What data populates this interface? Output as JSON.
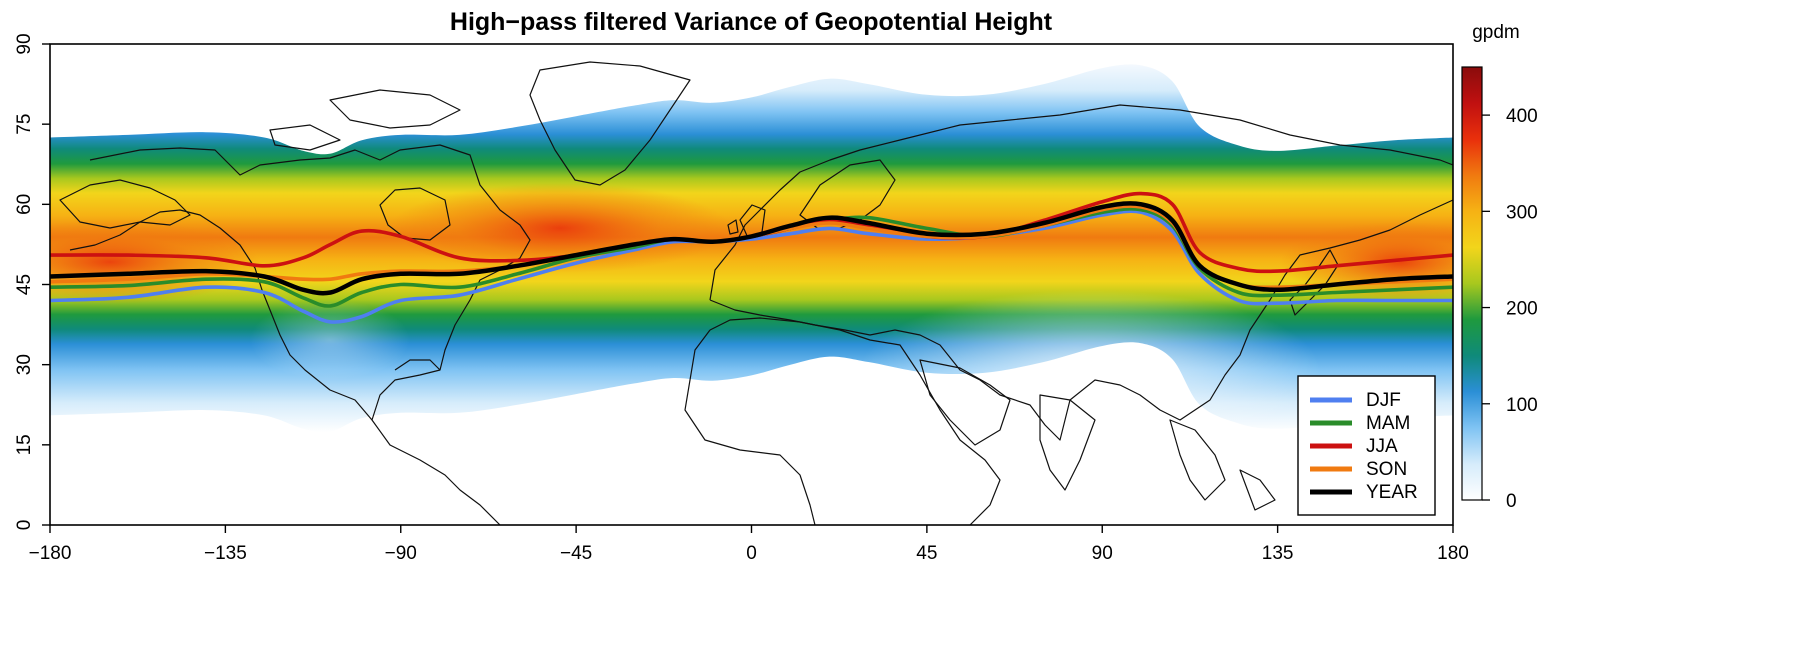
{
  "title": "High−pass filtered Variance of Geopotential Height",
  "colorbar": {
    "unit": "gpdm",
    "ticks": [
      "0",
      "100",
      "200",
      "300",
      "400"
    ],
    "tick_values": [
      0,
      100,
      200,
      300,
      400
    ],
    "range": [
      0,
      450
    ],
    "stops": [
      "#ffffff",
      "#d6ecfb",
      "#7fc3f3",
      "#2b8fd6",
      "#0f8a7a",
      "#1f9a3e",
      "#a8c81e",
      "#f2d51b",
      "#f6b214",
      "#f07a10",
      "#e9300c",
      "#c01010",
      "#8a0c0c"
    ]
  },
  "x_axis": {
    "ticks": [
      "−180",
      "−135",
      "−90",
      "−45",
      "0",
      "45",
      "90",
      "135",
      "180"
    ],
    "tick_values": [
      -180,
      -135,
      -90,
      -45,
      0,
      45,
      90,
      135,
      180
    ],
    "range": [
      -180,
      180
    ]
  },
  "y_axis": {
    "ticks": [
      "0",
      "15",
      "30",
      "45",
      "60",
      "75",
      "90"
    ],
    "tick_values": [
      0,
      15,
      30,
      45,
      60,
      75,
      90
    ],
    "range": [
      0,
      90
    ]
  },
  "legend": {
    "placement": "bottom-right",
    "items": [
      {
        "label": "DJF",
        "color": "#4f7ff0"
      },
      {
        "label": "MAM",
        "color": "#2a8c2a"
      },
      {
        "label": "JJA",
        "color": "#cc1111"
      },
      {
        "label": "SON",
        "color": "#f07a10"
      },
      {
        "label": "YEAR",
        "color": "#000000"
      }
    ]
  },
  "chart_data": {
    "type": "line",
    "title": "High−pass filtered Variance of Geopotential Height",
    "xlabel": "",
    "ylabel": "",
    "xlim": [
      -180,
      180
    ],
    "ylim": [
      0,
      90
    ],
    "x": [
      -180,
      -160,
      -140,
      -125,
      -115,
      -108,
      -100,
      -90,
      -75,
      -60,
      -45,
      -30,
      -20,
      -10,
      0,
      10,
      20,
      30,
      45,
      60,
      75,
      90,
      100,
      108,
      115,
      125,
      135,
      150,
      165,
      180
    ],
    "series": [
      {
        "name": "DJF",
        "color": "#4f7ff0",
        "values": [
          42,
          42.6,
          44.5,
          43.5,
          40,
          38,
          39,
          42,
          43,
          46,
          49,
          51.5,
          53,
          53,
          53.5,
          54.5,
          55.5,
          54.5,
          53.5,
          54,
          55.5,
          58,
          58.5,
          55,
          47,
          42,
          41.5,
          42,
          42,
          42
        ]
      },
      {
        "name": "MAM",
        "color": "#2a8c2a",
        "values": [
          44.5,
          44.8,
          46,
          45.5,
          42.5,
          41,
          43.5,
          45,
          44.5,
          47,
          50,
          52,
          53.5,
          53,
          54,
          55.5,
          57,
          57.5,
          55.5,
          54,
          56,
          58.5,
          59,
          56,
          48,
          43.5,
          43,
          43.5,
          44,
          44.5
        ]
      },
      {
        "name": "JJA",
        "color": "#cc1111",
        "values": [
          50.5,
          50.5,
          50,
          48.5,
          50,
          52.5,
          55,
          54,
          50,
          49.5,
          50.5,
          52.5,
          53.5,
          53,
          54,
          55.5,
          57,
          56,
          54,
          54,
          57,
          60.5,
          62,
          60,
          51,
          48,
          47.5,
          48.5,
          49.5,
          50.5
        ]
      },
      {
        "name": "SON",
        "color": "#f07a10",
        "values": [
          45.5,
          46,
          47,
          46.5,
          46,
          46,
          47,
          47.5,
          47.5,
          48.5,
          50.5,
          52.5,
          53.5,
          53,
          54,
          55.5,
          56.5,
          55.5,
          54,
          54,
          56,
          59,
          59.5,
          56.5,
          48.5,
          45,
          44.5,
          45,
          45.5,
          46
        ]
      },
      {
        "name": "YEAR",
        "color": "#000000",
        "values": [
          46.5,
          47,
          47.5,
          46.5,
          44,
          43.5,
          46,
          47,
          47,
          48.5,
          50.5,
          52.5,
          53.5,
          53,
          54,
          56,
          57.5,
          56.5,
          54.5,
          54.5,
          56.5,
          59.5,
          60,
          57,
          48.5,
          45,
          44,
          45,
          46,
          46.5
        ]
      }
    ],
    "legend": "bottom-right",
    "colorbar_label": "gpdm",
    "colorbar_range": [
      0,
      450
    ]
  }
}
